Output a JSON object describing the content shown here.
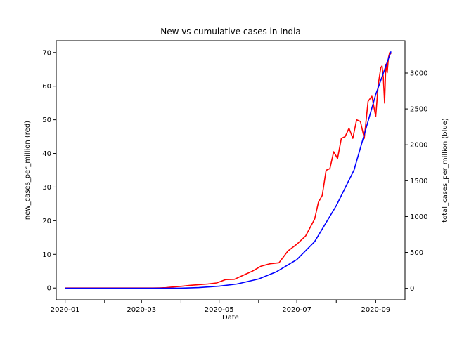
{
  "chart_data": {
    "type": "line",
    "title": "New vs cumulative cases in India",
    "xlabel": "Date",
    "ylabel_left": "new_cases_per_million (red)",
    "ylabel_right": "total_cases_per_million (blue)",
    "x_range": [
      "2019-12-25",
      "2020-09-24"
    ],
    "x_ticks": [
      {
        "date": "2020-01-01",
        "label": "2020-01"
      },
      {
        "date": "2020-02-01",
        "label": ""
      },
      {
        "date": "2020-03-01",
        "label": "2020-03"
      },
      {
        "date": "2020-04-01",
        "label": ""
      },
      {
        "date": "2020-05-01",
        "label": "2020-05"
      },
      {
        "date": "2020-06-01",
        "label": ""
      },
      {
        "date": "2020-07-01",
        "label": "2020-07"
      },
      {
        "date": "2020-08-01",
        "label": ""
      },
      {
        "date": "2020-09-01",
        "label": "2020-09"
      }
    ],
    "ylim_left": [
      -3.5,
      73.5
    ],
    "yticks_left": [
      0,
      10,
      20,
      30,
      40,
      50,
      60,
      70
    ],
    "ylim_right": [
      -160,
      3450
    ],
    "yticks_right": [
      0,
      500,
      1000,
      1500,
      2000,
      2500,
      3000
    ],
    "grid": false,
    "series": [
      {
        "axis": "left",
        "color": "#ff0000",
        "x": [
          "2020-01-01",
          "2020-03-10",
          "2020-03-15",
          "2020-03-20",
          "2020-03-25",
          "2020-04-01",
          "2020-04-08",
          "2020-04-15",
          "2020-04-22",
          "2020-04-29",
          "2020-05-06",
          "2020-05-13",
          "2020-05-20",
          "2020-05-27",
          "2020-06-03",
          "2020-06-10",
          "2020-06-17",
          "2020-06-24",
          "2020-07-01",
          "2020-07-08",
          "2020-07-15",
          "2020-07-18",
          "2020-07-21",
          "2020-07-24",
          "2020-07-27",
          "2020-07-30",
          "2020-08-02",
          "2020-08-05",
          "2020-08-08",
          "2020-08-11",
          "2020-08-14",
          "2020-08-17",
          "2020-08-20",
          "2020-08-23",
          "2020-08-26",
          "2020-08-29",
          "2020-09-01",
          "2020-09-03",
          "2020-09-05",
          "2020-09-06",
          "2020-09-07",
          "2020-09-08",
          "2020-09-09",
          "2020-09-10",
          "2020-09-11",
          "2020-09-12",
          "2020-09-13"
        ],
        "y": [
          0,
          0,
          0.05,
          0.1,
          0.3,
          0.5,
          0.8,
          1.0,
          1.2,
          1.5,
          2.5,
          2.6,
          3.8,
          5.0,
          6.5,
          7.2,
          7.5,
          11.0,
          13.0,
          15.5,
          20.5,
          25.5,
          27.5,
          35.0,
          35.5,
          40.5,
          38.5,
          44.5,
          45.0,
          47.5,
          44.5,
          50.0,
          49.5,
          44.5,
          55.5,
          57.0,
          51.0,
          60.5,
          65.5,
          66.0,
          62.5,
          55.0,
          66.5,
          64.0,
          68.5,
          70.0,
          69.5
        ]
      },
      {
        "axis": "right",
        "color": "#0000ff",
        "x": [
          "2020-01-01",
          "2020-03-10",
          "2020-04-01",
          "2020-04-15",
          "2020-05-01",
          "2020-05-15",
          "2020-06-01",
          "2020-06-15",
          "2020-07-01",
          "2020-07-15",
          "2020-08-01",
          "2020-08-15",
          "2020-09-01",
          "2020-09-13"
        ],
        "y": [
          0,
          0,
          2,
          10,
          30,
          60,
          130,
          230,
          400,
          650,
          1150,
          1650,
          2700,
          3300
        ]
      }
    ]
  }
}
